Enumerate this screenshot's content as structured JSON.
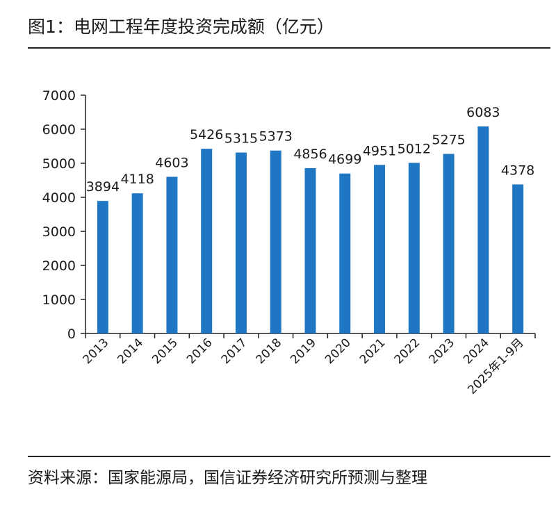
{
  "title": "图1：电网工程年度投资完成额（亿元）",
  "source": "资料来源：国家能源局，国信证券经济研究所预测与整理",
  "colors": {
    "bar": "#1f77c4",
    "axis": "#222222",
    "text": "#1a1a1a"
  },
  "chart_data": {
    "type": "bar",
    "categories": [
      "2013",
      "2014",
      "2015",
      "2016",
      "2017",
      "2018",
      "2019",
      "2020",
      "2021",
      "2022",
      "2023",
      "2024",
      "2025年1-9月"
    ],
    "values": [
      3894,
      4118,
      4603,
      5426,
      5315,
      5373,
      4856,
      4699,
      4951,
      5012,
      5275,
      6083,
      4378
    ],
    "ylim": [
      0,
      7000
    ],
    "yticks": [
      0,
      1000,
      2000,
      3000,
      4000,
      5000,
      6000,
      7000
    ],
    "grid": false,
    "legend": "none"
  }
}
